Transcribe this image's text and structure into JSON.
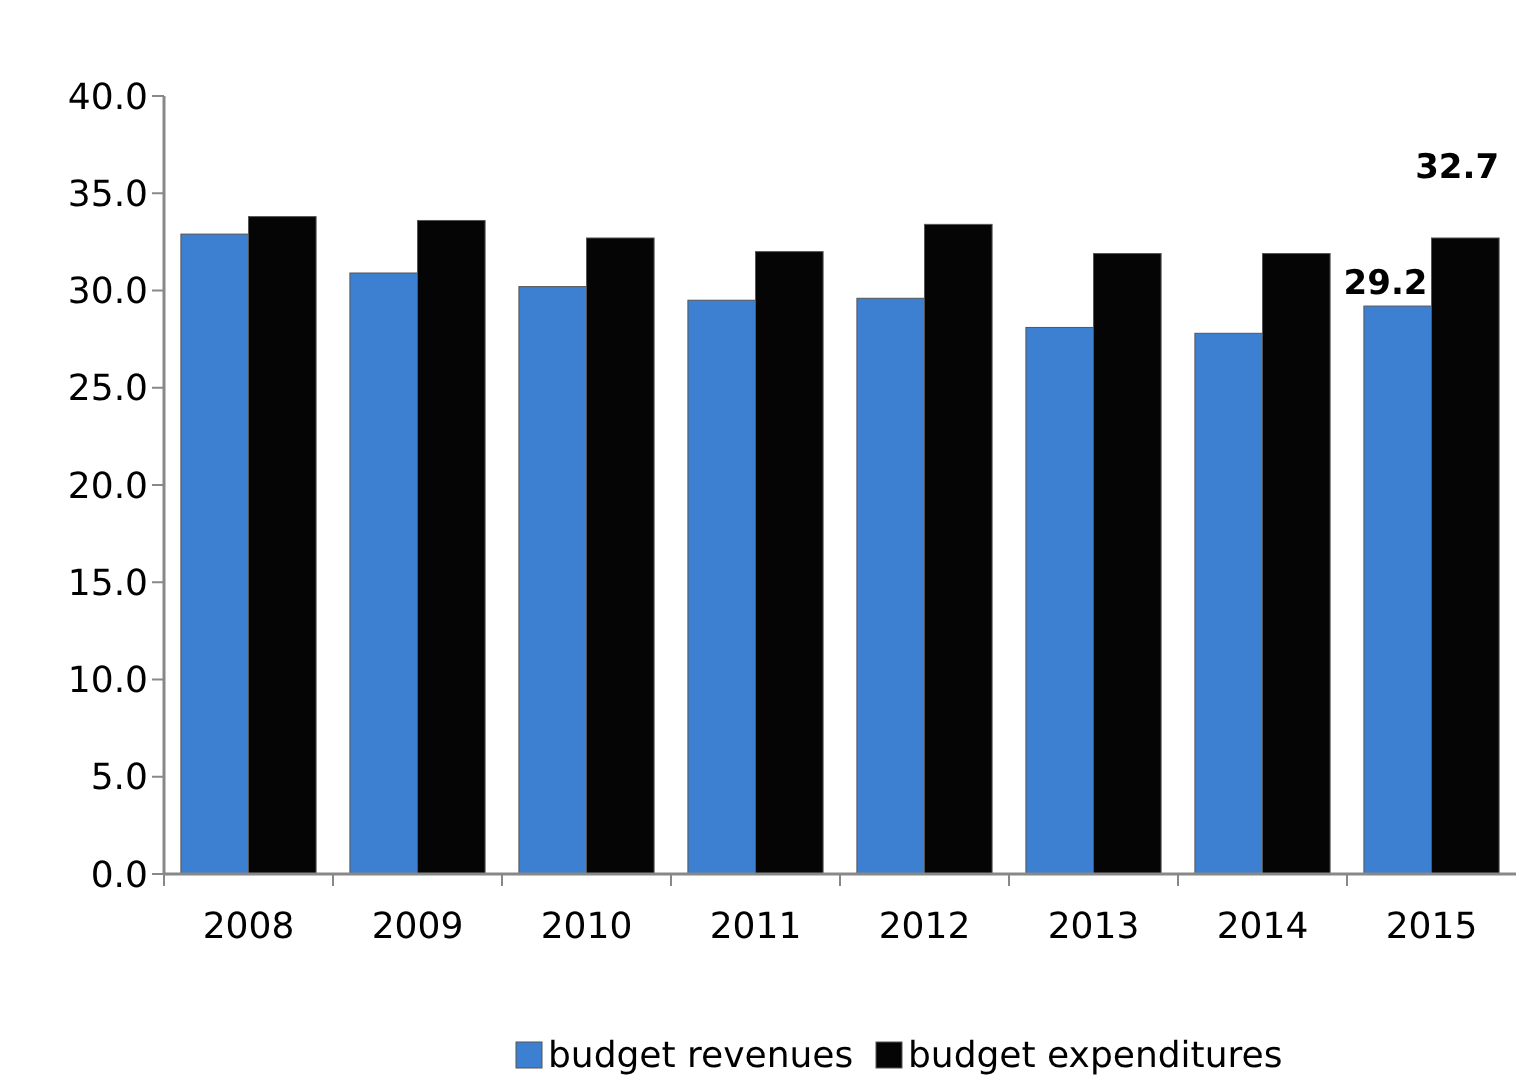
{
  "chart_data": {
    "type": "bar",
    "categories": [
      "2008",
      "2009",
      "2010",
      "2011",
      "2012",
      "2013",
      "2014",
      "2015"
    ],
    "series": [
      {
        "name": "budget revenues",
        "color": "#3d7fd1",
        "values": [
          32.9,
          30.9,
          30.2,
          29.5,
          29.6,
          28.1,
          27.8,
          29.2
        ],
        "value_labels": [
          null,
          null,
          null,
          null,
          null,
          null,
          null,
          "29.2"
        ]
      },
      {
        "name": "budget expenditures",
        "color": "#050505",
        "values": [
          33.8,
          33.6,
          32.7,
          32.0,
          33.4,
          31.9,
          31.9,
          32.7
        ],
        "value_labels": [
          null,
          null,
          null,
          null,
          null,
          null,
          null,
          "32.7"
        ]
      }
    ],
    "ylim": [
      0,
      40
    ],
    "yticks": [
      {
        "value": 0,
        "label": "0.0"
      },
      {
        "value": 5,
        "label": "5.0"
      },
      {
        "value": 10,
        "label": "10.0"
      },
      {
        "value": 15,
        "label": "15.0"
      },
      {
        "value": 20,
        "label": "20.0"
      },
      {
        "value": 25,
        "label": "25.0"
      },
      {
        "value": 30,
        "label": "30.0"
      },
      {
        "value": 35,
        "label": "35.0"
      },
      {
        "value": 40,
        "label": "40.0"
      }
    ],
    "grid": false,
    "legend": "bottom"
  }
}
